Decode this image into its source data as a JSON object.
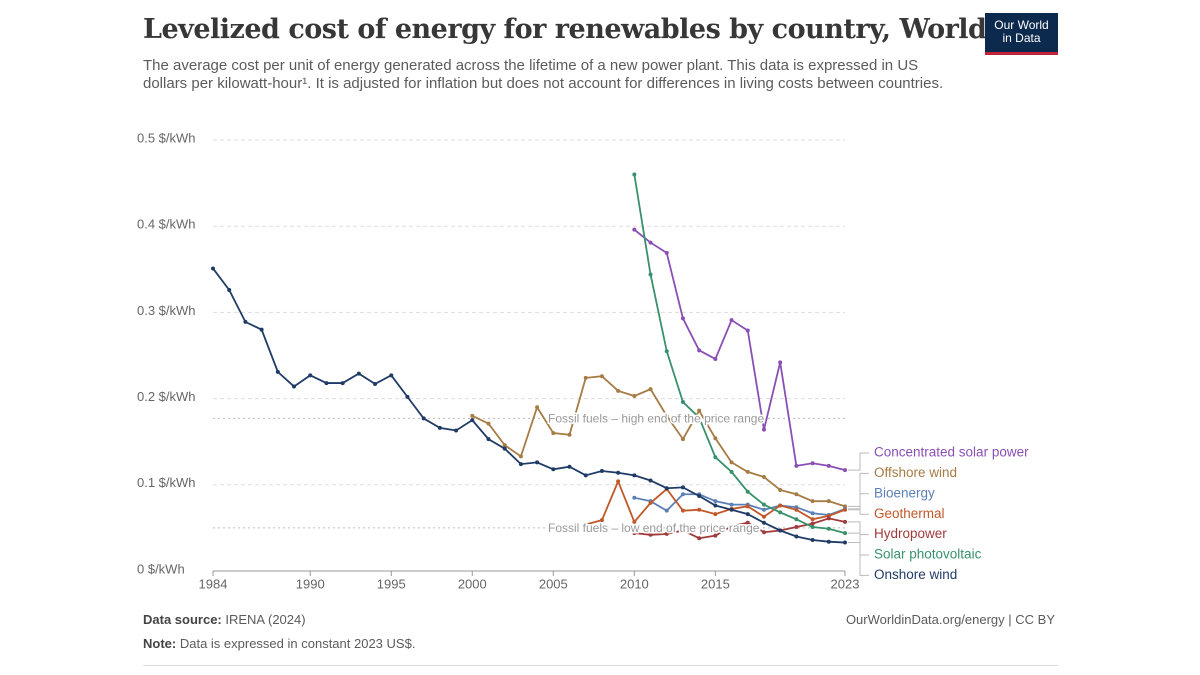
{
  "header": {
    "logo": [
      "Our World",
      "in Data"
    ]
  },
  "chart_data": {
    "type": "line",
    "title": "Levelized cost of energy for renewables by country, World",
    "subtitle": "The average cost per unit of energy generated across the lifetime of a new power plant. This data is expressed in US dollars per kilowatt-hour¹. It is adjusted for inflation but does not account for differences in living costs between countries.",
    "x": [
      1984,
      1985,
      1986,
      1987,
      1988,
      1989,
      1990,
      1991,
      1992,
      1993,
      1994,
      1995,
      1996,
      1997,
      1998,
      1999,
      2000,
      2001,
      2002,
      2003,
      2004,
      2005,
      2006,
      2007,
      2008,
      2009,
      2010,
      2011,
      2012,
      2013,
      2014,
      2015,
      2016,
      2017,
      2018,
      2019,
      2020,
      2021,
      2022,
      2023
    ],
    "xlim": [
      1984,
      2023
    ],
    "xticks": [
      1984,
      1990,
      1995,
      2000,
      2005,
      2010,
      2015,
      2023
    ],
    "ylim": [
      0,
      0.5
    ],
    "yticks": [
      {
        "value": 0,
        "label": "0 $/kWh"
      },
      {
        "value": 0.1,
        "label": "0.1 $/kWh"
      },
      {
        "value": 0.2,
        "label": "0.2 $/kWh"
      },
      {
        "value": 0.3,
        "label": "0.3 $/kWh"
      },
      {
        "value": 0.4,
        "label": "0.4 $/kWh"
      },
      {
        "value": 0.5,
        "label": "0.5 $/kWh"
      }
    ],
    "grid": true,
    "reference_lines": [
      {
        "value": 0.177,
        "label": "Fossil fuels – high end of the price range"
      },
      {
        "value": 0.05,
        "label": "Fossil fuels – low end of the price range"
      }
    ],
    "series": [
      {
        "name": "Concentrated solar power",
        "color": "#8a4fb5",
        "values": [
          null,
          null,
          null,
          null,
          null,
          null,
          null,
          null,
          null,
          null,
          null,
          null,
          null,
          null,
          null,
          null,
          null,
          null,
          null,
          null,
          null,
          null,
          null,
          null,
          null,
          null,
          0.396,
          0.381,
          0.369,
          0.293,
          0.256,
          0.246,
          0.291,
          0.279,
          0.164,
          0.242,
          0.122,
          0.125,
          0.122,
          0.117
        ]
      },
      {
        "name": "Offshore wind",
        "color": "#a67b44",
        "values": [
          null,
          null,
          null,
          null,
          null,
          null,
          null,
          null,
          null,
          null,
          null,
          null,
          null,
          null,
          null,
          null,
          0.18,
          0.171,
          0.146,
          0.133,
          0.19,
          0.16,
          0.158,
          0.224,
          0.226,
          0.209,
          0.203,
          0.211,
          0.18,
          0.153,
          0.186,
          0.154,
          0.126,
          0.115,
          0.109,
          0.094,
          0.089,
          0.081,
          0.081,
          0.075
        ]
      },
      {
        "name": "Bioenergy",
        "color": "#5b80b8",
        "values": [
          null,
          null,
          null,
          null,
          null,
          null,
          null,
          null,
          null,
          null,
          null,
          null,
          null,
          null,
          null,
          null,
          null,
          null,
          null,
          null,
          null,
          null,
          null,
          null,
          null,
          null,
          0.085,
          0.081,
          0.07,
          0.089,
          0.089,
          0.081,
          0.077,
          0.077,
          0.071,
          0.076,
          0.074,
          0.067,
          0.065,
          0.072
        ]
      },
      {
        "name": "Geothermal",
        "color": "#c0582a",
        "values": [
          null,
          null,
          null,
          null,
          null,
          null,
          null,
          null,
          null,
          null,
          null,
          null,
          null,
          null,
          null,
          null,
          null,
          null,
          null,
          null,
          null,
          null,
          null,
          0.054,
          0.059,
          0.104,
          0.057,
          0.079,
          0.095,
          0.07,
          0.071,
          0.066,
          0.072,
          0.075,
          0.063,
          0.076,
          0.071,
          0.06,
          0.064,
          0.071
        ]
      },
      {
        "name": "Hydropower",
        "color": "#a23a3a",
        "values": [
          null,
          null,
          null,
          null,
          null,
          null,
          null,
          null,
          null,
          null,
          null,
          null,
          null,
          null,
          null,
          null,
          null,
          null,
          null,
          null,
          null,
          null,
          null,
          null,
          null,
          null,
          0.044,
          0.042,
          0.043,
          0.047,
          0.038,
          0.041,
          0.052,
          0.056,
          0.045,
          0.047,
          0.051,
          0.055,
          0.061,
          0.057
        ]
      },
      {
        "name": "Solar photovoltaic",
        "color": "#38916a",
        "values": [
          null,
          null,
          null,
          null,
          null,
          null,
          null,
          null,
          null,
          null,
          null,
          null,
          null,
          null,
          null,
          null,
          null,
          null,
          null,
          null,
          null,
          null,
          null,
          null,
          null,
          null,
          0.46,
          0.344,
          0.255,
          0.196,
          0.178,
          0.132,
          0.115,
          0.092,
          0.077,
          0.068,
          0.06,
          0.051,
          0.049,
          0.044
        ]
      },
      {
        "name": "Onshore wind",
        "color": "#1f3b66",
        "values": [
          0.351,
          0.326,
          0.289,
          0.28,
          0.231,
          0.214,
          0.227,
          0.218,
          0.218,
          0.229,
          0.217,
          0.227,
          0.202,
          0.177,
          0.166,
          0.163,
          0.175,
          0.153,
          0.142,
          0.124,
          0.126,
          0.118,
          0.121,
          0.111,
          0.116,
          0.114,
          0.111,
          0.105,
          0.096,
          0.097,
          0.087,
          0.076,
          0.071,
          0.066,
          0.056,
          0.047,
          0.04,
          0.036,
          0.034,
          0.033
        ]
      }
    ]
  },
  "footer": {
    "source_label": "Data source:",
    "source": "IRENA (2024)",
    "note_label": "Note:",
    "note": "Data is expressed in constant 2023 US$.",
    "credit": "OurWorldinData.org/energy | CC BY"
  }
}
